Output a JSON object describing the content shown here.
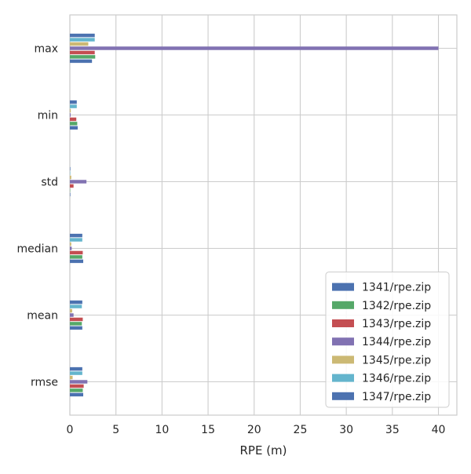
{
  "chart_data": {
    "type": "bar",
    "orientation": "horizontal",
    "xlabel": "RPE (m)",
    "ylabel": "",
    "title": "",
    "xlim": [
      0,
      42
    ],
    "xticks": [
      0,
      5,
      10,
      15,
      20,
      25,
      30,
      35,
      40
    ],
    "grid": true,
    "legend_position": "lower-right",
    "categories": [
      "max",
      "min",
      "std",
      "median",
      "mean",
      "rmse"
    ],
    "series": [
      {
        "name": "1341/rpe.zip",
        "color": "#4c72b0",
        "values": [
          2.4,
          0.85,
          0.05,
          1.45,
          1.35,
          1.45
        ]
      },
      {
        "name": "1342/rpe.zip",
        "color": "#55a868",
        "values": [
          2.75,
          0.8,
          0.03,
          1.35,
          1.3,
          1.4
        ]
      },
      {
        "name": "1343/rpe.zip",
        "color": "#c44e52",
        "values": [
          2.7,
          0.7,
          0.4,
          1.4,
          1.4,
          1.5
        ]
      },
      {
        "name": "1344/rpe.zip",
        "color": "#8172b2",
        "values": [
          40.0,
          0.08,
          1.8,
          0.2,
          0.4,
          1.9
        ]
      },
      {
        "name": "1345/rpe.zip",
        "color": "#ccb974",
        "values": [
          2.0,
          0.1,
          0.15,
          0.15,
          0.25,
          0.3
        ]
      },
      {
        "name": "1346/rpe.zip",
        "color": "#64b5cd",
        "values": [
          2.7,
          0.75,
          0.04,
          1.35,
          1.3,
          1.35
        ]
      },
      {
        "name": "1347/rpe.zip",
        "color": "#4c72b0",
        "values": [
          2.7,
          0.75,
          0.05,
          1.35,
          1.35,
          1.35
        ]
      }
    ]
  }
}
